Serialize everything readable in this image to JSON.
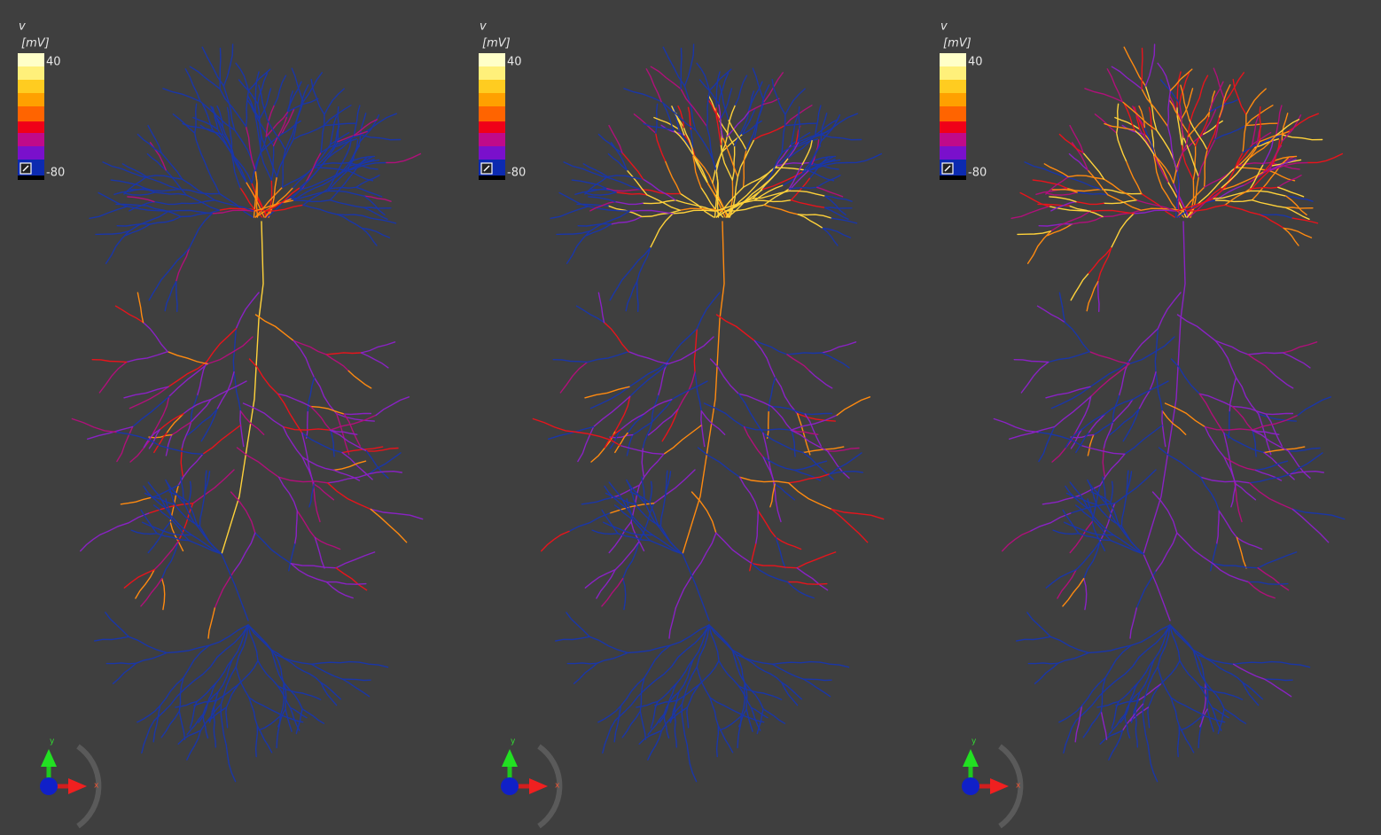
{
  "panels": [
    {
      "variable": "v",
      "unit": "[mV]",
      "scale_max": "40",
      "scale_min": "-80",
      "axis_y": "y",
      "axis_x": "x"
    },
    {
      "variable": "v",
      "unit": "[mV]",
      "scale_max": "40",
      "scale_min": "-80",
      "axis_y": "y",
      "axis_x": "x"
    },
    {
      "variable": "v",
      "unit": "[mV]",
      "scale_max": "40",
      "scale_min": "-80",
      "axis_y": "y",
      "axis_x": "x"
    }
  ],
  "colorbar_colors": [
    "#ffffc8",
    "#fff07a",
    "#ffcc20",
    "#ffa000",
    "#ff6400",
    "#f00018",
    "#c00a8a",
    "#7a10cc",
    "#0c2ab0"
  ]
}
